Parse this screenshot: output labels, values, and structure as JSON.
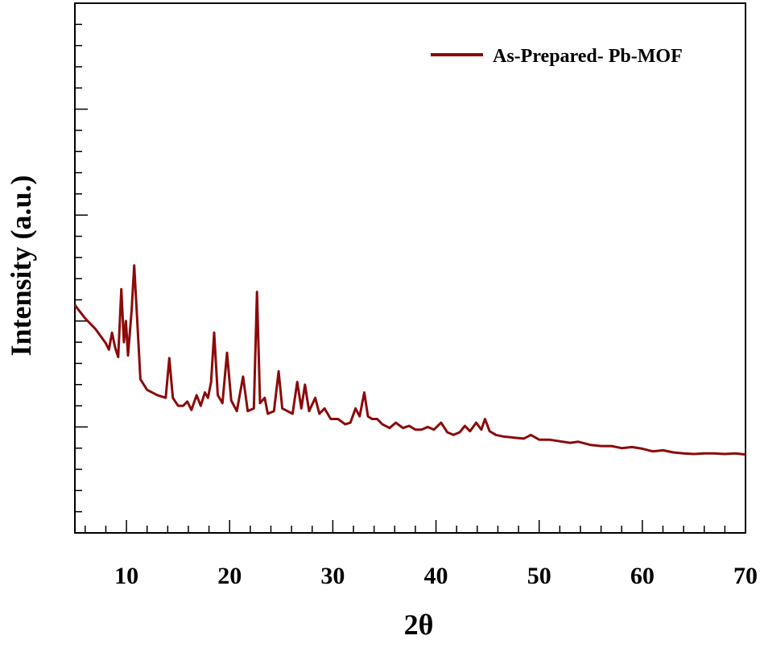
{
  "chart_data": {
    "type": "line",
    "title": "",
    "xlabel": "2θ",
    "ylabel": "Intensity (a.u.)",
    "xlim": [
      5,
      70
    ],
    "ylim": [
      0,
      100
    ],
    "x_ticks": [
      10,
      20,
      30,
      40,
      50,
      60,
      70
    ],
    "grid": false,
    "legend_position": "top-right",
    "series": [
      {
        "name": "As-Prepared- Pb-MOF",
        "color": "#8b0a0a",
        "points": [
          [
            5.0,
            43.0
          ],
          [
            6.0,
            40.5
          ],
          [
            7.0,
            38.5
          ],
          [
            8.0,
            35.8
          ],
          [
            8.3,
            34.6
          ],
          [
            8.6,
            37.8
          ],
          [
            8.9,
            35.0
          ],
          [
            9.2,
            33.2
          ],
          [
            9.5,
            46.0
          ],
          [
            9.75,
            36.0
          ],
          [
            9.95,
            40.0
          ],
          [
            10.15,
            33.5
          ],
          [
            10.5,
            42.0
          ],
          [
            10.75,
            50.5
          ],
          [
            11.05,
            40.0
          ],
          [
            11.35,
            29.0
          ],
          [
            12.0,
            27.0
          ],
          [
            13.0,
            26.0
          ],
          [
            13.8,
            25.5
          ],
          [
            14.15,
            33.0
          ],
          [
            14.5,
            25.5
          ],
          [
            15.0,
            24.0
          ],
          [
            15.5,
            24.0
          ],
          [
            15.9,
            24.8
          ],
          [
            16.3,
            23.2
          ],
          [
            16.8,
            26.0
          ],
          [
            17.2,
            24.0
          ],
          [
            17.6,
            26.5
          ],
          [
            17.9,
            25.5
          ],
          [
            18.2,
            28.5
          ],
          [
            18.5,
            37.8
          ],
          [
            18.85,
            26.0
          ],
          [
            19.3,
            24.5
          ],
          [
            19.75,
            34.0
          ],
          [
            20.15,
            25.0
          ],
          [
            20.7,
            23.0
          ],
          [
            21.3,
            29.5
          ],
          [
            21.75,
            23.0
          ],
          [
            22.35,
            23.5
          ],
          [
            22.65,
            45.5
          ],
          [
            22.95,
            24.5
          ],
          [
            23.4,
            25.5
          ],
          [
            23.7,
            22.5
          ],
          [
            24.3,
            23.0
          ],
          [
            24.75,
            30.5
          ],
          [
            25.1,
            23.5
          ],
          [
            25.6,
            23.0
          ],
          [
            26.1,
            22.5
          ],
          [
            26.55,
            28.5
          ],
          [
            26.95,
            23.5
          ],
          [
            27.3,
            28.0
          ],
          [
            27.7,
            23.0
          ],
          [
            28.3,
            25.5
          ],
          [
            28.7,
            22.5
          ],
          [
            29.2,
            23.5
          ],
          [
            29.8,
            21.5
          ],
          [
            30.5,
            21.5
          ],
          [
            31.2,
            20.5
          ],
          [
            31.7,
            20.8
          ],
          [
            32.2,
            23.5
          ],
          [
            32.6,
            22.0
          ],
          [
            33.05,
            26.5
          ],
          [
            33.4,
            22.0
          ],
          [
            33.8,
            21.5
          ],
          [
            34.3,
            21.5
          ],
          [
            34.8,
            20.5
          ],
          [
            35.5,
            19.8
          ],
          [
            36.1,
            20.8
          ],
          [
            36.8,
            19.8
          ],
          [
            37.4,
            20.2
          ],
          [
            38.0,
            19.5
          ],
          [
            38.6,
            19.5
          ],
          [
            39.2,
            20.0
          ],
          [
            39.8,
            19.5
          ],
          [
            40.5,
            20.8
          ],
          [
            41.1,
            19.0
          ],
          [
            41.7,
            18.5
          ],
          [
            42.3,
            19.0
          ],
          [
            42.8,
            20.2
          ],
          [
            43.3,
            19.2
          ],
          [
            43.9,
            20.8
          ],
          [
            44.4,
            19.5
          ],
          [
            44.75,
            21.5
          ],
          [
            45.2,
            19.2
          ],
          [
            45.8,
            18.5
          ],
          [
            46.5,
            18.2
          ],
          [
            47.5,
            18.0
          ],
          [
            48.5,
            17.8
          ],
          [
            49.2,
            18.5
          ],
          [
            50.0,
            17.6
          ],
          [
            51.0,
            17.6
          ],
          [
            52.0,
            17.3
          ],
          [
            53.0,
            17.0
          ],
          [
            53.8,
            17.2
          ],
          [
            55.0,
            16.6
          ],
          [
            56.0,
            16.4
          ],
          [
            57.0,
            16.4
          ],
          [
            58.0,
            16.0
          ],
          [
            59.0,
            16.2
          ],
          [
            60.0,
            15.9
          ],
          [
            61.0,
            15.4
          ],
          [
            62.0,
            15.6
          ],
          [
            63.0,
            15.2
          ],
          [
            64.0,
            15.0
          ],
          [
            65.0,
            14.9
          ],
          [
            66.0,
            15.0
          ],
          [
            67.0,
            15.0
          ],
          [
            68.0,
            14.9
          ],
          [
            69.0,
            15.0
          ],
          [
            70.0,
            14.8
          ]
        ]
      }
    ]
  }
}
